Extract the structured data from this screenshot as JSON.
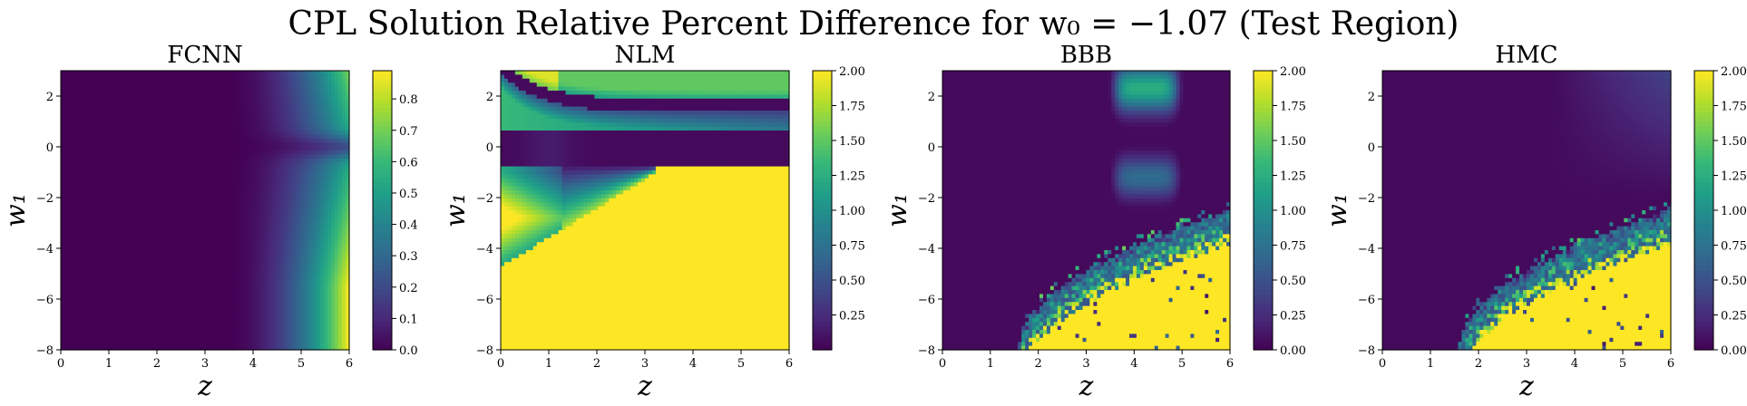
{
  "title": "CPL Solution Relative Percent Difference for w₀ = −1.07 (Test Region)",
  "chart_data": [
    {
      "type": "heatmap",
      "title": "FCNN",
      "xlabel": "z",
      "ylabel": "w₁",
      "xlim": [
        0,
        6
      ],
      "ylim": [
        -8,
        3
      ],
      "x_ticks": [
        0,
        1,
        2,
        3,
        4,
        5,
        6
      ],
      "y_ticks": [
        -8,
        -6,
        -4,
        -2,
        0,
        2
      ],
      "colormap": "viridis",
      "colorbar": {
        "min": 0,
        "max": 0.89,
        "ticks": [
          0.0,
          0.1,
          0.2,
          0.3,
          0.4,
          0.5,
          0.6,
          0.7,
          0.8
        ],
        "tick_labels": [
          "0.0",
          "0.1",
          "0.2",
          "0.3",
          "0.4",
          "0.5",
          "0.6",
          "0.7",
          "0.8"
        ]
      }
    },
    {
      "type": "heatmap",
      "title": "NLM",
      "xlabel": "z",
      "ylabel": "w₁",
      "xlim": [
        0,
        6
      ],
      "ylim": [
        -8,
        3
      ],
      "x_ticks": [
        0,
        1,
        2,
        3,
        4,
        5,
        6
      ],
      "y_ticks": [
        -8,
        -6,
        -4,
        -2,
        0,
        2
      ],
      "colormap": "viridis",
      "colorbar": {
        "min": 0,
        "max": 2.0,
        "ticks": [
          0.25,
          0.5,
          0.75,
          1.0,
          1.25,
          1.5,
          1.75,
          2.0
        ],
        "tick_labels": [
          "0.25",
          "0.50",
          "0.75",
          "1.00",
          "1.25",
          "1.50",
          "1.75",
          "2.00"
        ]
      }
    },
    {
      "type": "heatmap",
      "title": "BBB",
      "xlabel": "z",
      "ylabel": "w₁",
      "xlim": [
        0,
        6
      ],
      "ylim": [
        -8,
        3
      ],
      "x_ticks": [
        0,
        1,
        2,
        3,
        4,
        5,
        6
      ],
      "y_ticks": [
        -8,
        -6,
        -4,
        -2,
        0,
        2
      ],
      "colormap": "viridis",
      "colorbar": {
        "min": 0,
        "max": 2.0,
        "ticks": [
          0.0,
          0.25,
          0.5,
          0.75,
          1.0,
          1.25,
          1.5,
          1.75,
          2.0
        ],
        "tick_labels": [
          "0.00",
          "0.25",
          "0.50",
          "0.75",
          "1.00",
          "1.25",
          "1.50",
          "1.75",
          "2.00"
        ]
      }
    },
    {
      "type": "heatmap",
      "title": "HMC",
      "xlabel": "z",
      "ylabel": "w₁",
      "xlim": [
        0,
        6
      ],
      "ylim": [
        -8,
        3
      ],
      "x_ticks": [
        0,
        1,
        2,
        3,
        4,
        5,
        6
      ],
      "y_ticks": [
        -8,
        -6,
        -4,
        -2,
        0,
        2
      ],
      "colormap": "viridis",
      "colorbar": {
        "min": 0,
        "max": 2.0,
        "ticks": [
          0.0,
          0.25,
          0.5,
          0.75,
          1.0,
          1.25,
          1.5,
          1.75,
          2.0
        ],
        "tick_labels": [
          "0.00",
          "0.25",
          "0.50",
          "0.75",
          "1.00",
          "1.25",
          "1.50",
          "1.75",
          "2.00"
        ]
      }
    }
  ]
}
